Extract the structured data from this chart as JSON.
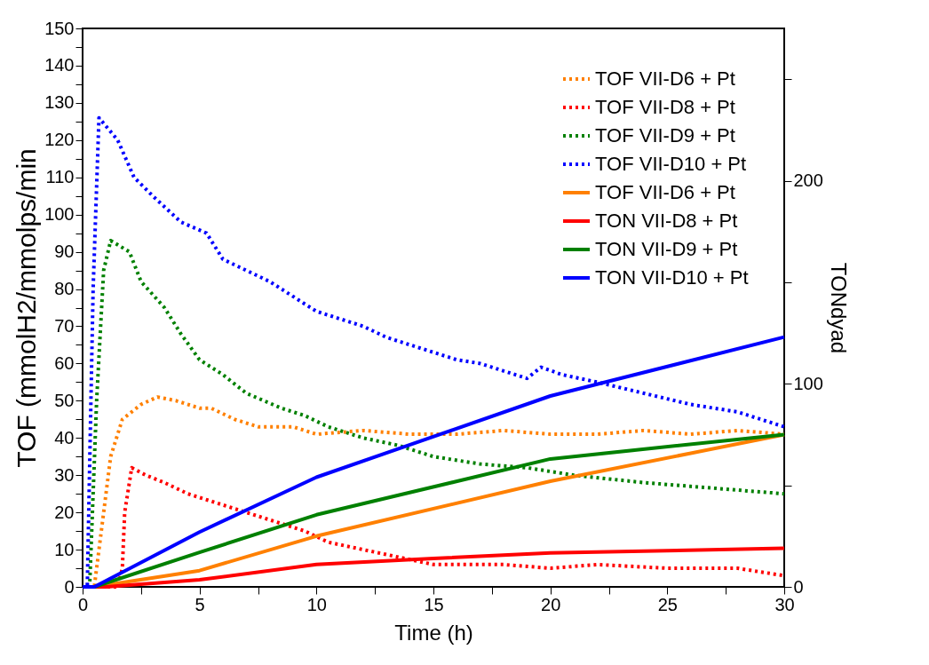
{
  "chart_data": {
    "type": "line",
    "xlabel": "Time (h)",
    "ylabel": "TOF  (mmolH2/mmolps/min",
    "y2label": "TONdyad",
    "xlim": [
      0,
      30
    ],
    "xticks": [
      0,
      {
        "value": 2.5,
        "label": null
      },
      5,
      {
        "value": 7.5,
        "label": null
      },
      10,
      {
        "value": 12.5,
        "label": null
      },
      15,
      {
        "value": 17.5,
        "label": null
      },
      20,
      {
        "value": 22.5,
        "label": null
      },
      25,
      {
        "value": 27.5,
        "label": null
      },
      30
    ],
    "ylim": [
      0,
      150
    ],
    "yticks": [
      0,
      {
        "value": 5,
        "label": null
      },
      10,
      {
        "value": 15,
        "label": null
      },
      20,
      {
        "value": 25,
        "label": null
      },
      30,
      {
        "value": 35,
        "label": null
      },
      40,
      {
        "value": 45,
        "label": null
      },
      50,
      {
        "value": 55,
        "label": null
      },
      60,
      {
        "value": 65,
        "label": null
      },
      70,
      {
        "value": 75,
        "label": null
      },
      80,
      {
        "value": 85,
        "label": null
      },
      90,
      {
        "value": 95,
        "label": null
      },
      100,
      {
        "value": 105,
        "label": null
      },
      110,
      {
        "value": 115,
        "label": null
      },
      120,
      {
        "value": 125,
        "label": null
      },
      130,
      {
        "value": 135,
        "label": null
      },
      140,
      {
        "value": 145,
        "label": null
      },
      150
    ],
    "y2lim": [
      0,
      275
    ],
    "y2ticks": [
      0,
      {
        "value": 50,
        "label": null
      },
      100,
      {
        "value": 150,
        "label": null
      },
      200,
      {
        "value": 250,
        "label": null
      }
    ],
    "grid": false,
    "legend": "top right",
    "marker": "none",
    "series": [
      {
        "name": "TOF VII-D6 + Pt",
        "color": "#ff8000",
        "line_style": "dotted",
        "x": [
          0,
          0.5,
          0.9,
          1.2,
          1.7,
          2.5,
          3.2,
          4,
          5,
          5.5,
          6.5,
          7.5,
          9,
          10,
          12,
          14,
          16,
          18,
          20,
          22,
          24,
          26,
          28,
          30
        ],
        "values": [
          0,
          0,
          20,
          35,
          45,
          49,
          51,
          50,
          48,
          48,
          45,
          43,
          43,
          41,
          42,
          41,
          41,
          42,
          41,
          41,
          42,
          41,
          42,
          41
        ]
      },
      {
        "name": "TOF VII-D8 + Pt",
        "color": "#ff0000",
        "line_style": "dotted",
        "x": [
          0,
          1.5,
          1.7,
          1.8,
          2.1,
          2.7,
          3.5,
          4.5,
          5.5,
          6.5,
          7.5,
          8.5,
          9.5,
          10.5,
          12,
          13.5,
          15,
          18,
          20,
          22,
          25,
          28,
          30
        ],
        "values": [
          0,
          0,
          5,
          20,
          32,
          30,
          28,
          25,
          23,
          21,
          19,
          17,
          15,
          12,
          10,
          8,
          6,
          6,
          5,
          6,
          5,
          5,
          3
        ]
      },
      {
        "name": "TOF VII-D9 + Pt",
        "color": "#008000",
        "line_style": "dotted",
        "x": [
          0,
          0.3,
          0.6,
          0.9,
          1.2,
          2,
          2.5,
          3.5,
          4.2,
          5,
          6,
          7,
          8.5,
          9.5,
          10.5,
          12,
          13.5,
          15,
          17,
          19,
          21,
          22.5,
          24,
          26,
          28,
          30
        ],
        "values": [
          0,
          0,
          50,
          85,
          93,
          90,
          82,
          75,
          68,
          61,
          57,
          52,
          48,
          46,
          43,
          40,
          38,
          35,
          33,
          32,
          30,
          29,
          28,
          27,
          26,
          25
        ]
      },
      {
        "name": "TOF VII-D10 + Pt",
        "color": "#0000ff",
        "line_style": "dotted",
        "x": [
          0,
          0.2,
          0.45,
          0.7,
          1.5,
          2.2,
          3,
          4.2,
          5.3,
          6,
          7,
          8,
          9,
          10,
          11,
          12,
          13,
          14,
          15,
          16,
          17,
          18,
          19,
          19.6,
          20.5,
          22,
          24,
          26,
          28,
          29,
          30
        ],
        "values": [
          0,
          0,
          80,
          126,
          120,
          110,
          105,
          98,
          95,
          88,
          85,
          82,
          78,
          74,
          72,
          70,
          67,
          65,
          63,
          61,
          60,
          58,
          56,
          59,
          57,
          55,
          52,
          49,
          47,
          45,
          43
        ]
      },
      {
        "name": "TOF VII-D6 + Pt",
        "color": "#ff8000",
        "line_style": "solid",
        "axis": "y2",
        "x": [
          0,
          0.5,
          5,
          10,
          20,
          30
        ],
        "values": [
          0,
          0,
          8,
          25,
          52,
          75
        ]
      },
      {
        "name": "TON VII-D8 + Pt",
        "color": "#ff0000",
        "line_style": "solid",
        "axis": "y2",
        "x": [
          0,
          1,
          5,
          10,
          15,
          20,
          30
        ],
        "values": [
          0,
          0,
          3.5,
          11,
          14,
          16.7,
          19
        ]
      },
      {
        "name": "TON VII-D9 + Pt",
        "color": "#008000",
        "line_style": "solid",
        "axis": "y2",
        "x": [
          0,
          0.5,
          5,
          10,
          20,
          30
        ],
        "values": [
          0,
          0,
          17,
          35.5,
          63,
          75
        ]
      },
      {
        "name": "TON VII-D10 + Pt",
        "color": "#0000ff",
        "line_style": "solid",
        "axis": "y2",
        "x": [
          0,
          0.5,
          5,
          10,
          20,
          30
        ],
        "values": [
          0,
          0,
          27,
          54,
          94,
          123
        ]
      }
    ]
  }
}
